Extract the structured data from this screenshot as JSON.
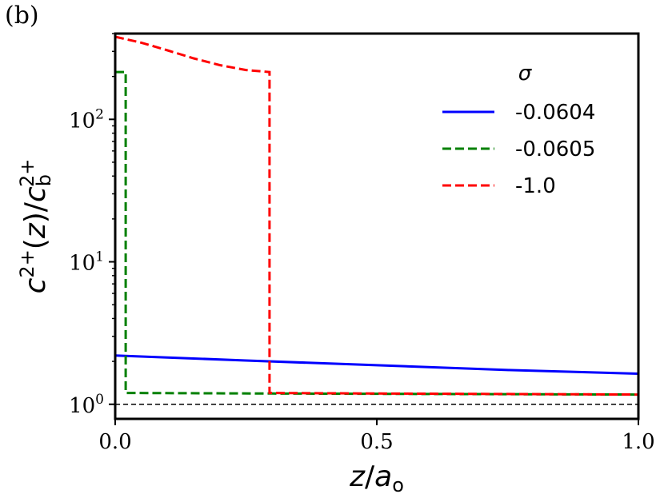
{
  "panel_label": "(b)",
  "chart_data": {
    "type": "line",
    "x_scale": "linear",
    "y_scale": "log",
    "xlim": [
      0.0,
      1.0
    ],
    "ylim": [
      0.79,
      400
    ],
    "x_ticks": [
      {
        "value": 0.0,
        "label": "0.0"
      },
      {
        "value": 0.5,
        "label": "0.5"
      },
      {
        "value": 1.0,
        "label": "1.0"
      }
    ],
    "y_ticks": [
      {
        "value": 1,
        "base": "10",
        "exp": "0"
      },
      {
        "value": 10,
        "base": "10",
        "exp": "1"
      },
      {
        "value": 100,
        "base": "10",
        "exp": "2"
      }
    ],
    "reference_line": {
      "y": 1.0,
      "color": "#000000",
      "style": "dashed"
    },
    "xlabel": {
      "var": "z",
      "sep": "/",
      "sym": "a",
      "sub": "o"
    },
    "ylabel": {
      "base": "c",
      "sup": "2+",
      "open": "(",
      "var": "z",
      "close": ")/",
      "base2": "c",
      "sub2": "b",
      "sup2": "2+"
    },
    "legend": {
      "title": "σ",
      "placement": "top-right"
    },
    "series": [
      {
        "name": "-0.0604",
        "color": "#0000ff",
        "style": "solid",
        "points": [
          [
            0.0,
            2.2
          ],
          [
            0.25,
            2.03
          ],
          [
            0.5,
            1.88
          ],
          [
            0.75,
            1.74
          ],
          [
            1.0,
            1.64
          ]
        ]
      },
      {
        "name": "-0.0605",
        "color": "#008000",
        "style": "dashed",
        "points": [
          [
            0.0,
            215
          ],
          [
            0.02,
            215
          ],
          [
            0.02,
            1.2
          ],
          [
            0.3,
            1.19
          ],
          [
            1.0,
            1.17
          ]
        ]
      },
      {
        "name": "-1.0",
        "color": "#ff0000",
        "style": "dashed",
        "points": [
          [
            0.0,
            380
          ],
          [
            0.05,
            345
          ],
          [
            0.1,
            305
          ],
          [
            0.15,
            268
          ],
          [
            0.2,
            240
          ],
          [
            0.25,
            222
          ],
          [
            0.295,
            215
          ],
          [
            0.295,
            1.2
          ],
          [
            0.5,
            1.19
          ],
          [
            0.75,
            1.18
          ],
          [
            1.0,
            1.17
          ]
        ]
      }
    ]
  }
}
